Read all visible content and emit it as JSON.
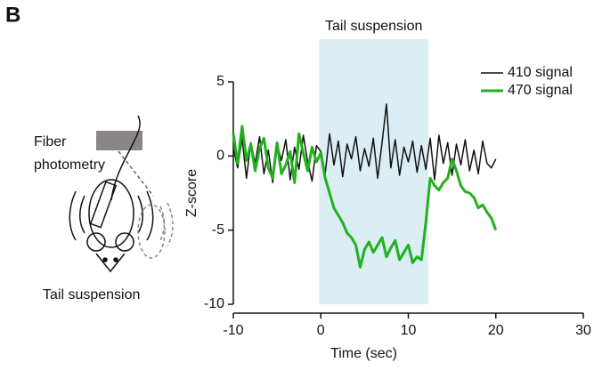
{
  "panel_label": "B",
  "illustration": {
    "device_label": [
      "Fiber",
      "photometry"
    ],
    "caption": "Tail suspension"
  },
  "chart_data": {
    "type": "line",
    "annotation": "Tail suspension",
    "shaded_region": [
      -0.2,
      12.3
    ],
    "shade_color": "#dbeef4",
    "x_label": "Time (sec)",
    "y_label": "Z-score",
    "xlim": [
      -10,
      30
    ],
    "xticks": [
      -10,
      0,
      10,
      20,
      30
    ],
    "ylim": [
      -10,
      5
    ],
    "yticks": [
      -10,
      -5,
      0,
      5
    ],
    "legend": "upper right",
    "x": [
      -10,
      -9.5,
      -9,
      -8.5,
      -8,
      -7.5,
      -7,
      -6.5,
      -6,
      -5.5,
      -5,
      -4.5,
      -4,
      -3.5,
      -3,
      -2.5,
      -2,
      -1.5,
      -1,
      -0.5,
      0,
      0.5,
      1,
      1.5,
      2,
      2.5,
      3,
      3.5,
      4,
      4.5,
      5,
      5.5,
      6,
      6.5,
      7,
      7.5,
      8,
      8.5,
      9,
      9.5,
      10,
      10.5,
      11,
      11.5,
      12,
      12.5,
      13,
      13.5,
      14,
      14.5,
      15,
      15.5,
      16,
      16.5,
      17,
      17.5,
      18,
      18.5,
      19,
      19.5,
      20
    ],
    "series": [
      {
        "name": "410 signal",
        "color": "#111111",
        "width": 1.5,
        "values": [
          0.5,
          -0.8,
          1.2,
          -1.5,
          0.9,
          -0.5,
          1.3,
          -1.2,
          0.4,
          -1.8,
          0.8,
          -0.3,
          1.1,
          -1.6,
          0.6,
          -0.9,
          1.4,
          -0.4,
          -1.7,
          0.7,
          0.3,
          -1.2,
          1.5,
          -0.6,
          1.0,
          -1.4,
          0.8,
          -0.2,
          1.3,
          -1.0,
          0.5,
          -0.7,
          1.2,
          -1.5,
          0.9,
          3.5,
          -0.8,
          1.1,
          -1.3,
          0.6,
          -0.4,
          1.0,
          -1.1,
          0.7,
          -0.9,
          1.2,
          -1.6,
          1.4,
          -0.5,
          0.9,
          -1.3,
          0.8,
          -0.6,
          1.1,
          -1.0,
          0.4,
          -1.2,
          1.0,
          -0.5,
          -0.8,
          -0.2
        ]
      },
      {
        "name": "470 signal",
        "color": "#22b01e",
        "width": 3,
        "values": [
          1.5,
          -0.5,
          2.0,
          -0.3,
          0.8,
          -1.0,
          0.5,
          1.2,
          -0.8,
          -1.5,
          0.9,
          -1.2,
          -0.6,
          0.3,
          -1.8,
          1.5,
          0.2,
          -1.0,
          0.6,
          -0.4,
          0.2,
          -1.5,
          -2.5,
          -3.5,
          -4.0,
          -4.5,
          -5.2,
          -5.5,
          -6.0,
          -7.5,
          -6.3,
          -5.8,
          -6.5,
          -6.0,
          -5.5,
          -6.8,
          -6.2,
          -5.7,
          -7.0,
          -6.5,
          -6.0,
          -7.2,
          -6.8,
          -7.0,
          -4.5,
          -1.5,
          -2.0,
          -2.3,
          -1.8,
          -1.5,
          -0.2,
          -1.0,
          -2.0,
          -2.4,
          -2.5,
          -2.8,
          -3.5,
          -3.3,
          -3.8,
          -4.2,
          -5.0
        ]
      }
    ]
  }
}
